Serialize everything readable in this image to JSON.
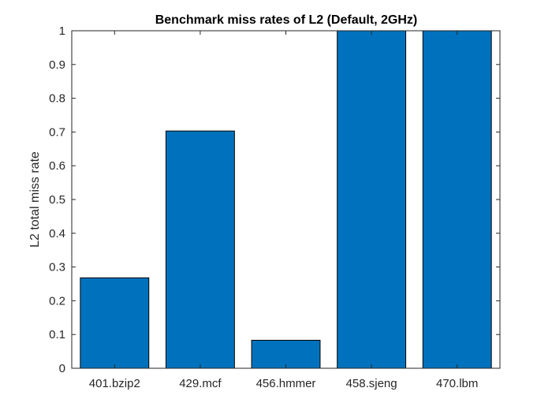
{
  "chart_data": {
    "type": "bar",
    "title": "Benchmark miss rates of L2 (Default, 2GHz)",
    "xlabel": "",
    "ylabel": "L2 total miss rate",
    "categories": [
      "401.bzip2",
      "429.mcf",
      "456.hmmer",
      "458.sjeng",
      "470.lbm"
    ],
    "values": [
      0.268,
      0.703,
      0.083,
      1.0,
      1.0
    ],
    "ylim": [
      0,
      1
    ],
    "yticks": [
      "0",
      "0.1",
      "0.2",
      "0.3",
      "0.4",
      "0.5",
      "0.6",
      "0.7",
      "0.8",
      "0.9",
      "1"
    ],
    "grid": false,
    "colors": {
      "bar": "#0072BD",
      "bar_edge": "#000000",
      "axis": "#262626",
      "background": "#ffffff"
    }
  }
}
